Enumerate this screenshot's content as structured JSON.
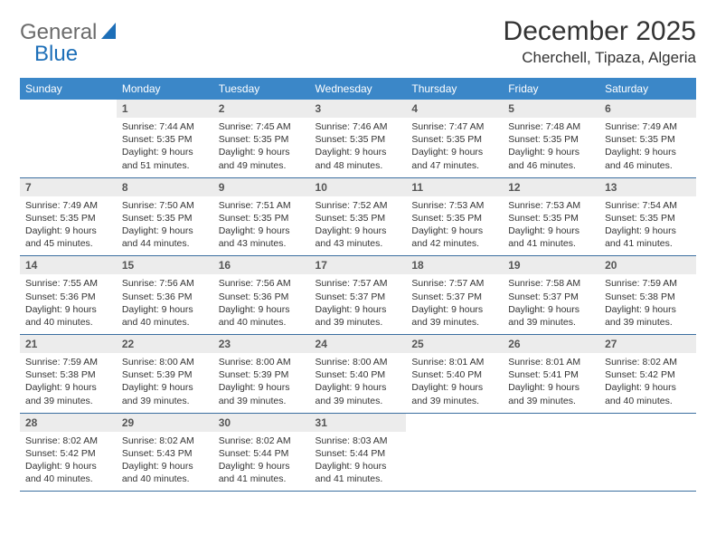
{
  "brand": {
    "part1": "General",
    "part2": "Blue"
  },
  "colors": {
    "header_bg": "#3b87c8",
    "header_fg": "#ffffff",
    "daynum_bg": "#ececec",
    "row_border": "#3b6fa0",
    "logo_gray": "#6b6b6b",
    "logo_blue": "#1d6fb8"
  },
  "title": "December 2025",
  "location": "Cherchell, Tipaza, Algeria",
  "weekdays": [
    "Sunday",
    "Monday",
    "Tuesday",
    "Wednesday",
    "Thursday",
    "Friday",
    "Saturday"
  ],
  "start_offset": 1,
  "days": [
    {
      "n": 1,
      "sunrise": "7:44 AM",
      "sunset": "5:35 PM",
      "dl": "9 hours and 51 minutes."
    },
    {
      "n": 2,
      "sunrise": "7:45 AM",
      "sunset": "5:35 PM",
      "dl": "9 hours and 49 minutes."
    },
    {
      "n": 3,
      "sunrise": "7:46 AM",
      "sunset": "5:35 PM",
      "dl": "9 hours and 48 minutes."
    },
    {
      "n": 4,
      "sunrise": "7:47 AM",
      "sunset": "5:35 PM",
      "dl": "9 hours and 47 minutes."
    },
    {
      "n": 5,
      "sunrise": "7:48 AM",
      "sunset": "5:35 PM",
      "dl": "9 hours and 46 minutes."
    },
    {
      "n": 6,
      "sunrise": "7:49 AM",
      "sunset": "5:35 PM",
      "dl": "9 hours and 46 minutes."
    },
    {
      "n": 7,
      "sunrise": "7:49 AM",
      "sunset": "5:35 PM",
      "dl": "9 hours and 45 minutes."
    },
    {
      "n": 8,
      "sunrise": "7:50 AM",
      "sunset": "5:35 PM",
      "dl": "9 hours and 44 minutes."
    },
    {
      "n": 9,
      "sunrise": "7:51 AM",
      "sunset": "5:35 PM",
      "dl": "9 hours and 43 minutes."
    },
    {
      "n": 10,
      "sunrise": "7:52 AM",
      "sunset": "5:35 PM",
      "dl": "9 hours and 43 minutes."
    },
    {
      "n": 11,
      "sunrise": "7:53 AM",
      "sunset": "5:35 PM",
      "dl": "9 hours and 42 minutes."
    },
    {
      "n": 12,
      "sunrise": "7:53 AM",
      "sunset": "5:35 PM",
      "dl": "9 hours and 41 minutes."
    },
    {
      "n": 13,
      "sunrise": "7:54 AM",
      "sunset": "5:35 PM",
      "dl": "9 hours and 41 minutes."
    },
    {
      "n": 14,
      "sunrise": "7:55 AM",
      "sunset": "5:36 PM",
      "dl": "9 hours and 40 minutes."
    },
    {
      "n": 15,
      "sunrise": "7:56 AM",
      "sunset": "5:36 PM",
      "dl": "9 hours and 40 minutes."
    },
    {
      "n": 16,
      "sunrise": "7:56 AM",
      "sunset": "5:36 PM",
      "dl": "9 hours and 40 minutes."
    },
    {
      "n": 17,
      "sunrise": "7:57 AM",
      "sunset": "5:37 PM",
      "dl": "9 hours and 39 minutes."
    },
    {
      "n": 18,
      "sunrise": "7:57 AM",
      "sunset": "5:37 PM",
      "dl": "9 hours and 39 minutes."
    },
    {
      "n": 19,
      "sunrise": "7:58 AM",
      "sunset": "5:37 PM",
      "dl": "9 hours and 39 minutes."
    },
    {
      "n": 20,
      "sunrise": "7:59 AM",
      "sunset": "5:38 PM",
      "dl": "9 hours and 39 minutes."
    },
    {
      "n": 21,
      "sunrise": "7:59 AM",
      "sunset": "5:38 PM",
      "dl": "9 hours and 39 minutes."
    },
    {
      "n": 22,
      "sunrise": "8:00 AM",
      "sunset": "5:39 PM",
      "dl": "9 hours and 39 minutes."
    },
    {
      "n": 23,
      "sunrise": "8:00 AM",
      "sunset": "5:39 PM",
      "dl": "9 hours and 39 minutes."
    },
    {
      "n": 24,
      "sunrise": "8:00 AM",
      "sunset": "5:40 PM",
      "dl": "9 hours and 39 minutes."
    },
    {
      "n": 25,
      "sunrise": "8:01 AM",
      "sunset": "5:40 PM",
      "dl": "9 hours and 39 minutes."
    },
    {
      "n": 26,
      "sunrise": "8:01 AM",
      "sunset": "5:41 PM",
      "dl": "9 hours and 39 minutes."
    },
    {
      "n": 27,
      "sunrise": "8:02 AM",
      "sunset": "5:42 PM",
      "dl": "9 hours and 40 minutes."
    },
    {
      "n": 28,
      "sunrise": "8:02 AM",
      "sunset": "5:42 PM",
      "dl": "9 hours and 40 minutes."
    },
    {
      "n": 29,
      "sunrise": "8:02 AM",
      "sunset": "5:43 PM",
      "dl": "9 hours and 40 minutes."
    },
    {
      "n": 30,
      "sunrise": "8:02 AM",
      "sunset": "5:44 PM",
      "dl": "9 hours and 41 minutes."
    },
    {
      "n": 31,
      "sunrise": "8:03 AM",
      "sunset": "5:44 PM",
      "dl": "9 hours and 41 minutes."
    }
  ],
  "labels": {
    "sunrise": "Sunrise:",
    "sunset": "Sunset:",
    "daylight": "Daylight:"
  }
}
